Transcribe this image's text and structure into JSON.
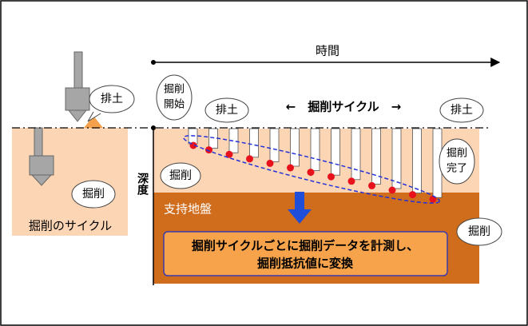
{
  "left_panel": {
    "callout_discharge": "排土",
    "callout_excavate": "掘削",
    "caption": "掘削のサイクル"
  },
  "main": {
    "time_label": "時間",
    "cycle_label": "←　掘削サイクル　→",
    "depth_label": "深度",
    "layer_label": "支持地盤",
    "callout_start": [
      "掘削",
      "開始"
    ],
    "callout_discharge_first": "排土",
    "callout_discharge_last": "排土",
    "callout_excavate": "掘削",
    "callout_complete": [
      "掘削",
      "完了"
    ],
    "callout_excavate_bottom": "掘削",
    "summary": [
      "掘削サイクルごとに掘削データを計測し、",
      "掘削抵抗値に変換"
    ]
  }
}
